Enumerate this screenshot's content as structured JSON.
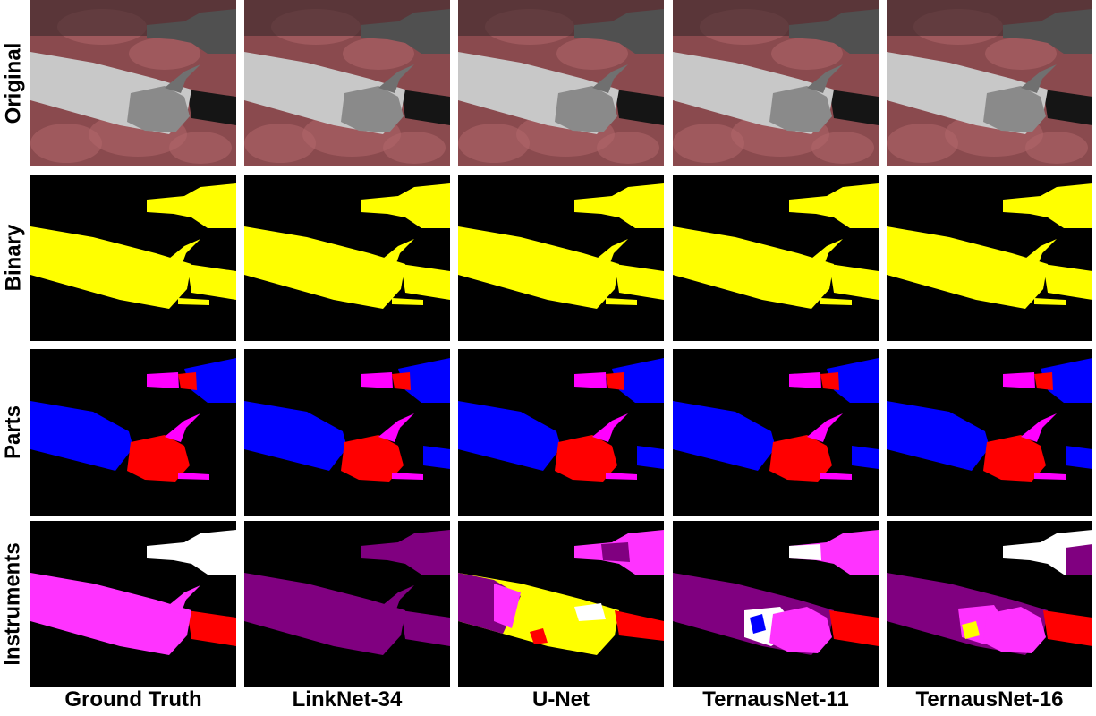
{
  "rows": [
    {
      "key": "original",
      "label": "Original"
    },
    {
      "key": "binary",
      "label": "Binary"
    },
    {
      "key": "parts",
      "label": "Parts"
    },
    {
      "key": "instruments",
      "label": "Instruments"
    }
  ],
  "columns": [
    {
      "key": "gt",
      "label": "Ground Truth"
    },
    {
      "key": "link",
      "label": "LinkNet-34"
    },
    {
      "key": "unet",
      "label": "U-Net"
    },
    {
      "key": "t11",
      "label": "TernausNet-11"
    },
    {
      "key": "t16",
      "label": "TernausNet-16"
    }
  ],
  "colors": {
    "background": "#000000",
    "binary_mask": "#ffff00",
    "parts_shaft": "#0000ff",
    "parts_wrist": "#ff0000",
    "parts_clasper": "#ff00ff",
    "instrument_magenta": "#ff33ff",
    "instrument_purple": "#800080",
    "instrument_red": "#ff0000",
    "instrument_white": "#ffffff",
    "instrument_yellow": "#ffff00",
    "instrument_blue": "#0000ff",
    "tissue": "#8a4a4e"
  }
}
